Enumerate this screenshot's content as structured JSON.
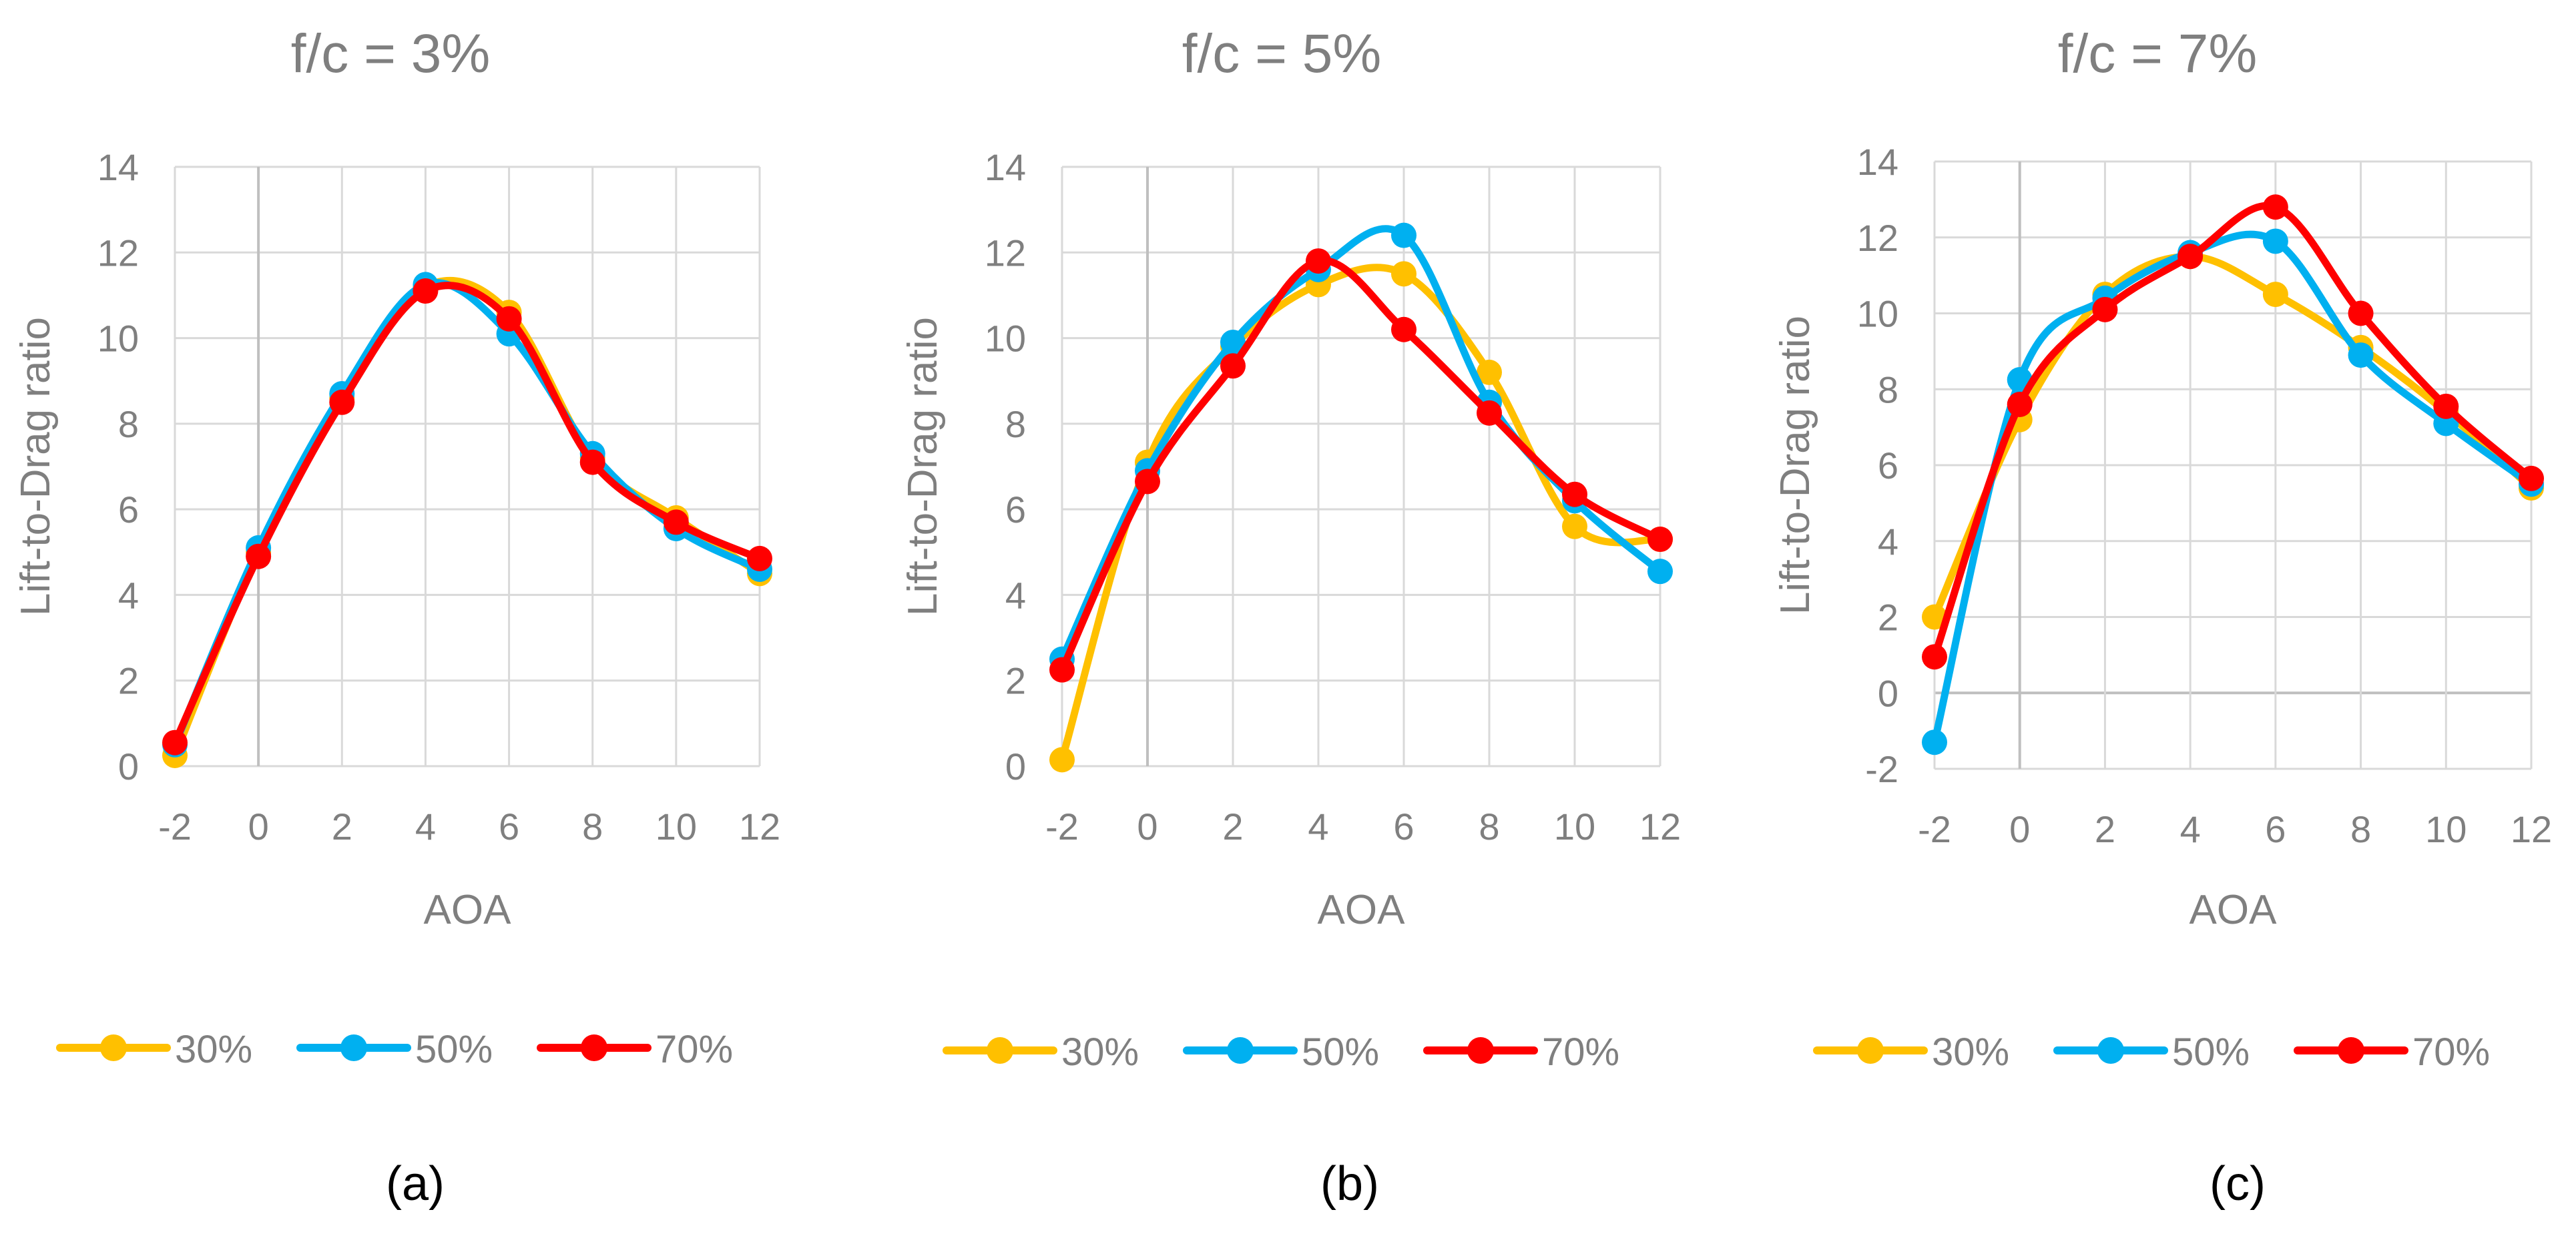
{
  "figure": {
    "colors": {
      "series_30": "#FFC000",
      "series_50": "#00B0F0",
      "series_70": "#FF0000",
      "grid": "#D9D9D9",
      "zero_line": "#BFBFBF",
      "axis_text": "#7F7F7F"
    }
  },
  "chart_data": [
    {
      "type": "line",
      "title": "f/c = 3%",
      "panel_label": "(a)",
      "xlabel": "AOA",
      "ylabel": "Lift-to-Drag ratio",
      "x": [
        -2,
        0,
        2,
        4,
        6,
        8,
        10,
        12
      ],
      "x_ticks": [
        "-2",
        "0",
        "2",
        "4",
        "6",
        "8",
        "10",
        "12"
      ],
      "xlim": [
        -2,
        12
      ],
      "ylim": [
        0,
        14
      ],
      "y_ticks": [
        "0",
        "2",
        "4",
        "6",
        "8",
        "10",
        "12",
        "14"
      ],
      "y_tick_values": [
        0,
        2,
        4,
        6,
        8,
        10,
        12,
        14
      ],
      "legend_position": "bottom",
      "series": [
        {
          "name": "30%",
          "color": "#FFC000",
          "values": [
            0.25,
            5.0,
            8.6,
            11.2,
            10.6,
            7.2,
            5.8,
            4.5
          ]
        },
        {
          "name": "50%",
          "color": "#00B0F0",
          "values": [
            0.5,
            5.1,
            8.7,
            11.25,
            10.1,
            7.3,
            5.55,
            4.6
          ]
        },
        {
          "name": "70%",
          "color": "#FF0000",
          "values": [
            0.55,
            4.9,
            8.5,
            11.1,
            10.45,
            7.1,
            5.7,
            4.85
          ]
        }
      ]
    },
    {
      "type": "line",
      "title": "f/c = 5%",
      "panel_label": "(b)",
      "xlabel": "AOA",
      "ylabel": "Lift-to-Drag ratio",
      "x": [
        -2,
        0,
        2,
        4,
        6,
        8,
        10,
        12
      ],
      "x_ticks": [
        "-2",
        "0",
        "2",
        "4",
        "6",
        "8",
        "10",
        "12"
      ],
      "xlim": [
        -2,
        12
      ],
      "ylim": [
        0,
        14
      ],
      "y_ticks": [
        "0",
        "2",
        "4",
        "6",
        "8",
        "10",
        "12",
        "14"
      ],
      "y_tick_values": [
        0,
        2,
        4,
        6,
        8,
        10,
        12,
        14
      ],
      "legend_position": "bottom",
      "series": [
        {
          "name": "30%",
          "color": "#FFC000",
          "values": [
            0.15,
            7.1,
            9.8,
            11.25,
            11.5,
            9.2,
            5.6,
            5.3
          ]
        },
        {
          "name": "50%",
          "color": "#00B0F0",
          "values": [
            2.5,
            6.9,
            9.9,
            11.6,
            12.4,
            8.5,
            6.2,
            4.55
          ]
        },
        {
          "name": "70%",
          "color": "#FF0000",
          "values": [
            2.25,
            6.65,
            9.35,
            11.8,
            10.2,
            8.25,
            6.35,
            5.3
          ]
        }
      ]
    },
    {
      "type": "line",
      "title": "f/c = 7%",
      "panel_label": "(c)",
      "xlabel": "AOA",
      "ylabel": "Lift-to-Drag ratio",
      "x": [
        -2,
        0,
        2,
        4,
        6,
        8,
        10,
        12
      ],
      "x_ticks": [
        "-2",
        "0",
        "2",
        "4",
        "6",
        "8",
        "10",
        "12"
      ],
      "xlim": [
        -2,
        12
      ],
      "ylim": [
        -2,
        14
      ],
      "y_ticks": [
        "-2",
        "0",
        "2",
        "4",
        "6",
        "8",
        "10",
        "12",
        "14"
      ],
      "y_tick_values": [
        -2,
        0,
        2,
        4,
        6,
        8,
        10,
        12,
        14
      ],
      "legend_position": "bottom",
      "series": [
        {
          "name": "30%",
          "color": "#FFC000",
          "values": [
            2.0,
            7.2,
            10.5,
            11.5,
            10.5,
            9.1,
            7.4,
            5.4
          ]
        },
        {
          "name": "50%",
          "color": "#00B0F0",
          "values": [
            -1.3,
            8.25,
            10.4,
            11.6,
            11.9,
            8.9,
            7.1,
            5.5
          ]
        },
        {
          "name": "70%",
          "color": "#FF0000",
          "values": [
            0.95,
            7.6,
            10.1,
            11.5,
            12.8,
            10.0,
            7.55,
            5.65
          ]
        }
      ]
    }
  ]
}
